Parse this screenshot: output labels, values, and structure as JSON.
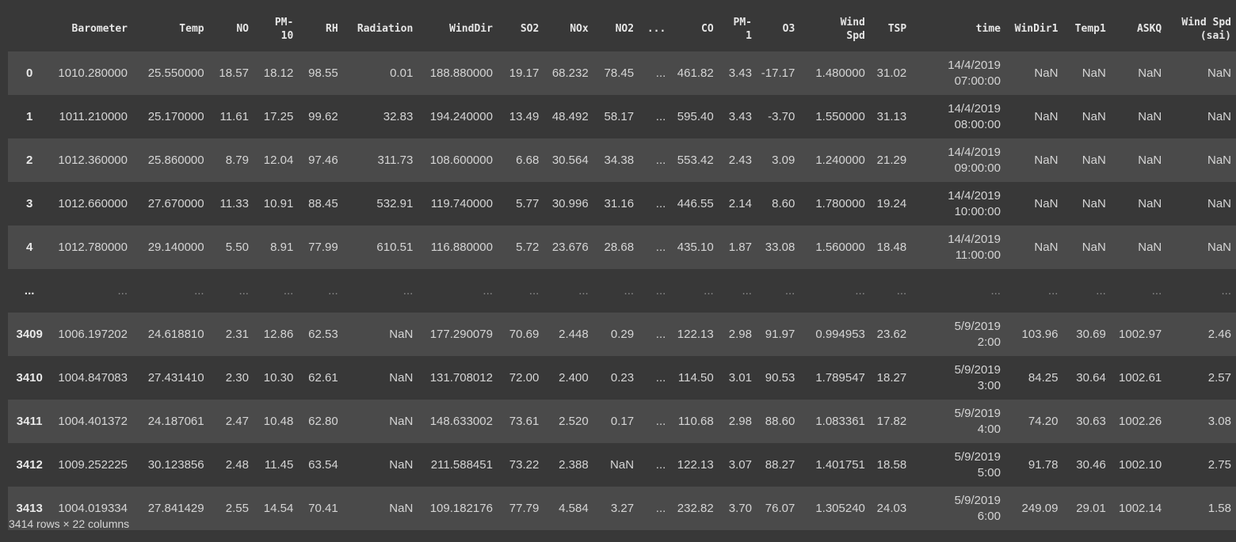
{
  "table": {
    "columns": [
      "",
      "Barometer",
      "Temp",
      "NO",
      "PM-\n10",
      "RH",
      "Radiation",
      "WindDir",
      "SO2",
      "NOx",
      "NO2",
      "...",
      "CO",
      "PM-\n1",
      "O3",
      "Wind\nSpd",
      "TSP",
      "time",
      "WinDir1",
      "Temp1",
      "ASKQ",
      "Wind Spd\n(sai)"
    ],
    "rows": [
      [
        "0",
        "1010.280000",
        "25.550000",
        "18.57",
        "18.12",
        "98.55",
        "0.01",
        "188.880000",
        "19.17",
        "68.232",
        "78.45",
        "...",
        "461.82",
        "3.43",
        "-17.17",
        "1.480000",
        "31.02",
        "14/4/2019\n07:00:00",
        "NaN",
        "NaN",
        "NaN",
        "NaN"
      ],
      [
        "1",
        "1011.210000",
        "25.170000",
        "11.61",
        "17.25",
        "99.62",
        "32.83",
        "194.240000",
        "13.49",
        "48.492",
        "58.17",
        "...",
        "595.40",
        "3.43",
        "-3.70",
        "1.550000",
        "31.13",
        "14/4/2019\n08:00:00",
        "NaN",
        "NaN",
        "NaN",
        "NaN"
      ],
      [
        "2",
        "1012.360000",
        "25.860000",
        "8.79",
        "12.04",
        "97.46",
        "311.73",
        "108.600000",
        "6.68",
        "30.564",
        "34.38",
        "...",
        "553.42",
        "2.43",
        "3.09",
        "1.240000",
        "21.29",
        "14/4/2019\n09:00:00",
        "NaN",
        "NaN",
        "NaN",
        "NaN"
      ],
      [
        "3",
        "1012.660000",
        "27.670000",
        "11.33",
        "10.91",
        "88.45",
        "532.91",
        "119.740000",
        "5.77",
        "30.996",
        "31.16",
        "...",
        "446.55",
        "2.14",
        "8.60",
        "1.780000",
        "19.24",
        "14/4/2019\n10:00:00",
        "NaN",
        "NaN",
        "NaN",
        "NaN"
      ],
      [
        "4",
        "1012.780000",
        "29.140000",
        "5.50",
        "8.91",
        "77.99",
        "610.51",
        "116.880000",
        "5.72",
        "23.676",
        "28.68",
        "...",
        "435.10",
        "1.87",
        "33.08",
        "1.560000",
        "18.48",
        "14/4/2019\n11:00:00",
        "NaN",
        "NaN",
        "NaN",
        "NaN"
      ],
      [
        "...",
        "...",
        "...",
        "...",
        "...",
        "...",
        "...",
        "...",
        "...",
        "...",
        "...",
        "...",
        "...",
        "...",
        "...",
        "...",
        "...",
        "...",
        "...",
        "...",
        "...",
        "..."
      ],
      [
        "3409",
        "1006.197202",
        "24.618810",
        "2.31",
        "12.86",
        "62.53",
        "NaN",
        "177.290079",
        "70.69",
        "2.448",
        "0.29",
        "...",
        "122.13",
        "2.98",
        "91.97",
        "0.994953",
        "23.62",
        "5/9/2019\n2:00",
        "103.96",
        "30.69",
        "1002.97",
        "2.46"
      ],
      [
        "3410",
        "1004.847083",
        "27.431410",
        "2.30",
        "10.30",
        "62.61",
        "NaN",
        "131.708012",
        "72.00",
        "2.400",
        "0.23",
        "...",
        "114.50",
        "3.01",
        "90.53",
        "1.789547",
        "18.27",
        "5/9/2019\n3:00",
        "84.25",
        "30.64",
        "1002.61",
        "2.57"
      ],
      [
        "3411",
        "1004.401372",
        "24.187061",
        "2.47",
        "10.48",
        "62.80",
        "NaN",
        "148.633002",
        "73.61",
        "2.520",
        "0.17",
        "...",
        "110.68",
        "2.98",
        "88.60",
        "1.083361",
        "17.82",
        "5/9/2019\n4:00",
        "74.20",
        "30.63",
        "1002.26",
        "3.08"
      ],
      [
        "3412",
        "1009.252225",
        "30.123856",
        "2.48",
        "11.45",
        "63.54",
        "NaN",
        "211.588451",
        "73.22",
        "2.388",
        "NaN",
        "...",
        "122.13",
        "3.07",
        "88.27",
        "1.401751",
        "18.58",
        "5/9/2019\n5:00",
        "91.78",
        "30.46",
        "1002.10",
        "2.75"
      ],
      [
        "3413",
        "1004.019334",
        "27.841429",
        "2.55",
        "14.54",
        "70.41",
        "NaN",
        "109.182176",
        "77.79",
        "4.584",
        "3.27",
        "...",
        "232.82",
        "3.70",
        "76.07",
        "1.305240",
        "24.03",
        "5/9/2019\n6:00",
        "249.09",
        "29.01",
        "1002.14",
        "1.58"
      ]
    ]
  },
  "footer": {
    "shape": "3414 rows × 22 columns"
  }
}
